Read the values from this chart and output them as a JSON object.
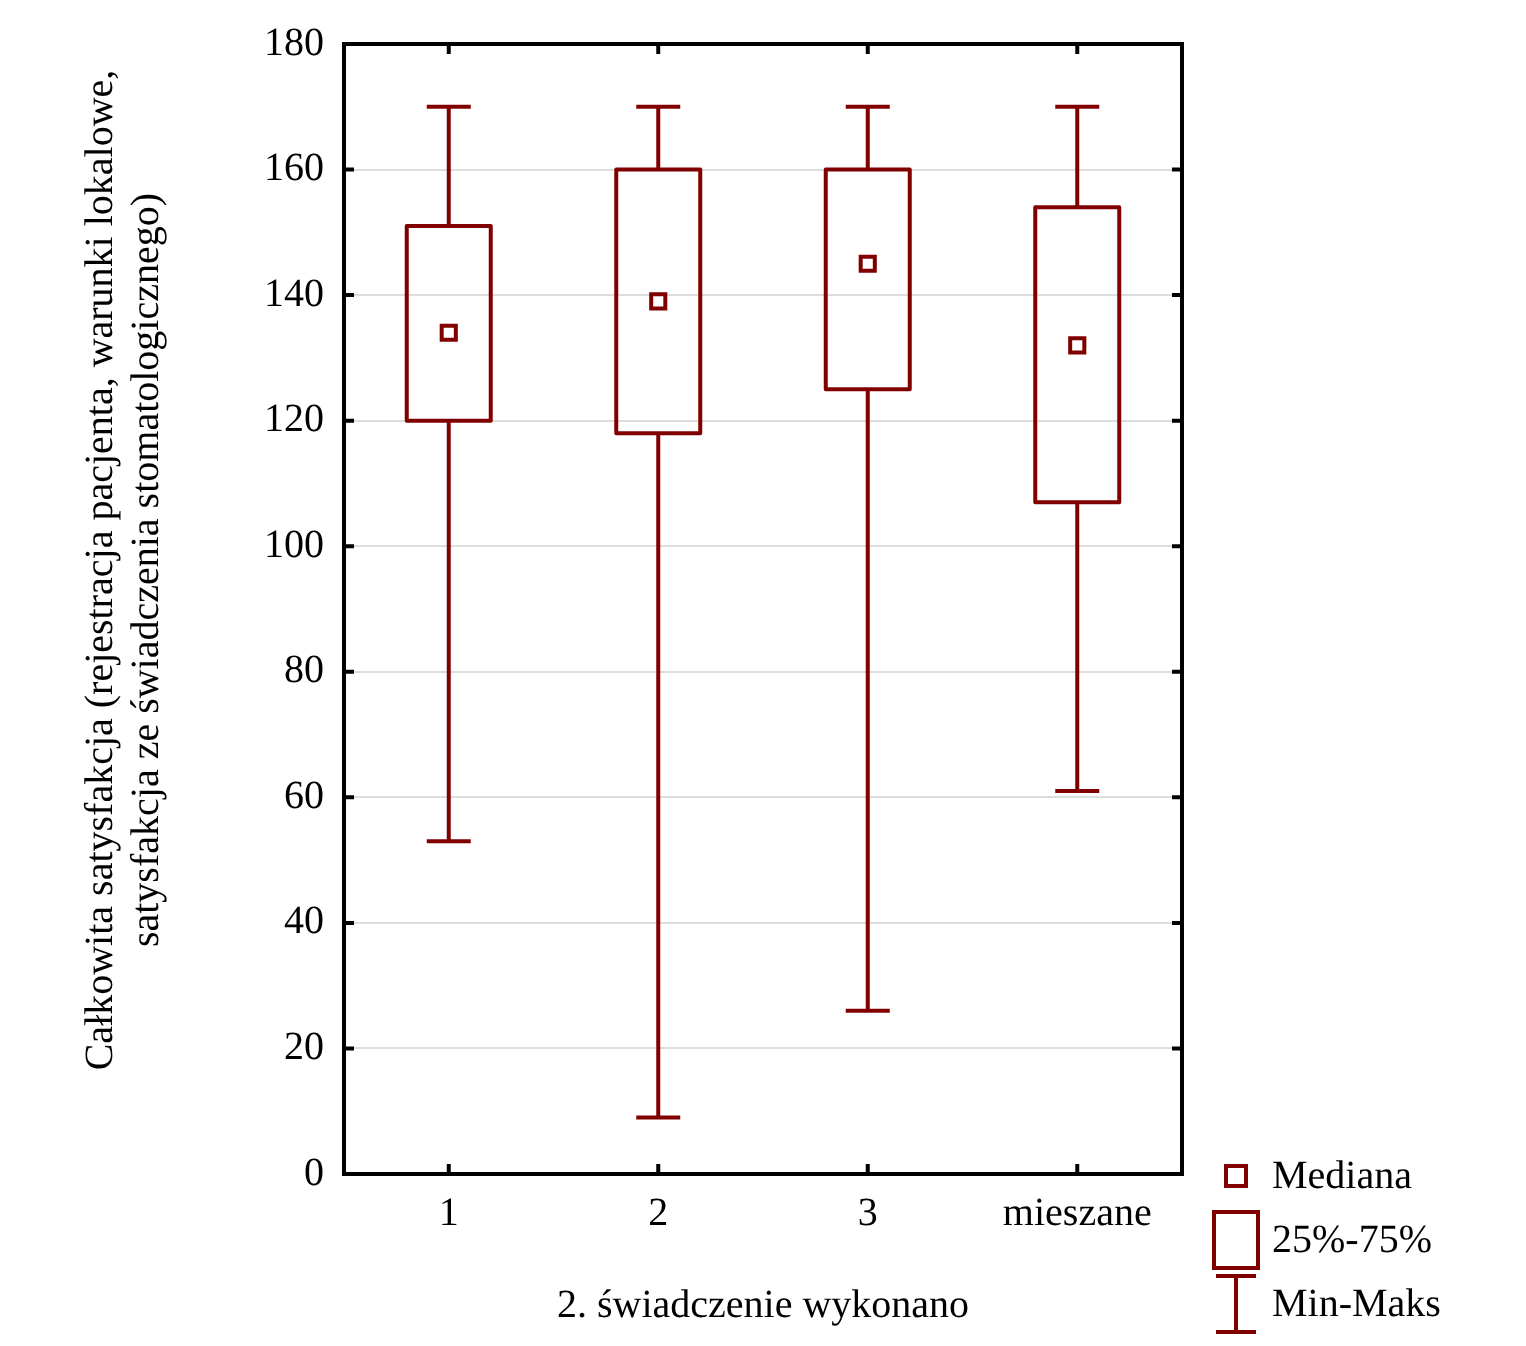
{
  "chart_data": {
    "type": "box",
    "xlabel": "2. świadczenie wykonano",
    "ylabel": "Całkowita satysfakcja (rejestracja pacjenta, warunki lokalowe, satysfakcja ze świadczenia stomatologicznego)",
    "categories": [
      "1",
      "2",
      "3",
      "mieszane"
    ],
    "series": [
      {
        "color": "#800000",
        "boxes": [
          {
            "low": 53,
            "q1": 120,
            "median": 134,
            "q3": 151,
            "high": 170
          },
          {
            "low": 9,
            "q1": 118,
            "median": 139,
            "q3": 160,
            "high": 170
          },
          {
            "low": 26,
            "q1": 125,
            "median": 145,
            "q3": 160,
            "high": 170
          },
          {
            "low": 61,
            "q1": 107,
            "median": 132,
            "q3": 154,
            "high": 170
          }
        ]
      }
    ],
    "ylim": [
      0,
      180
    ],
    "yticks": [
      0,
      20,
      40,
      60,
      80,
      100,
      120,
      140,
      160,
      180
    ],
    "grid": "y",
    "marker": "square",
    "annotations": [
      "Mediana",
      "25%-75%",
      "Min-Maks"
    ]
  }
}
